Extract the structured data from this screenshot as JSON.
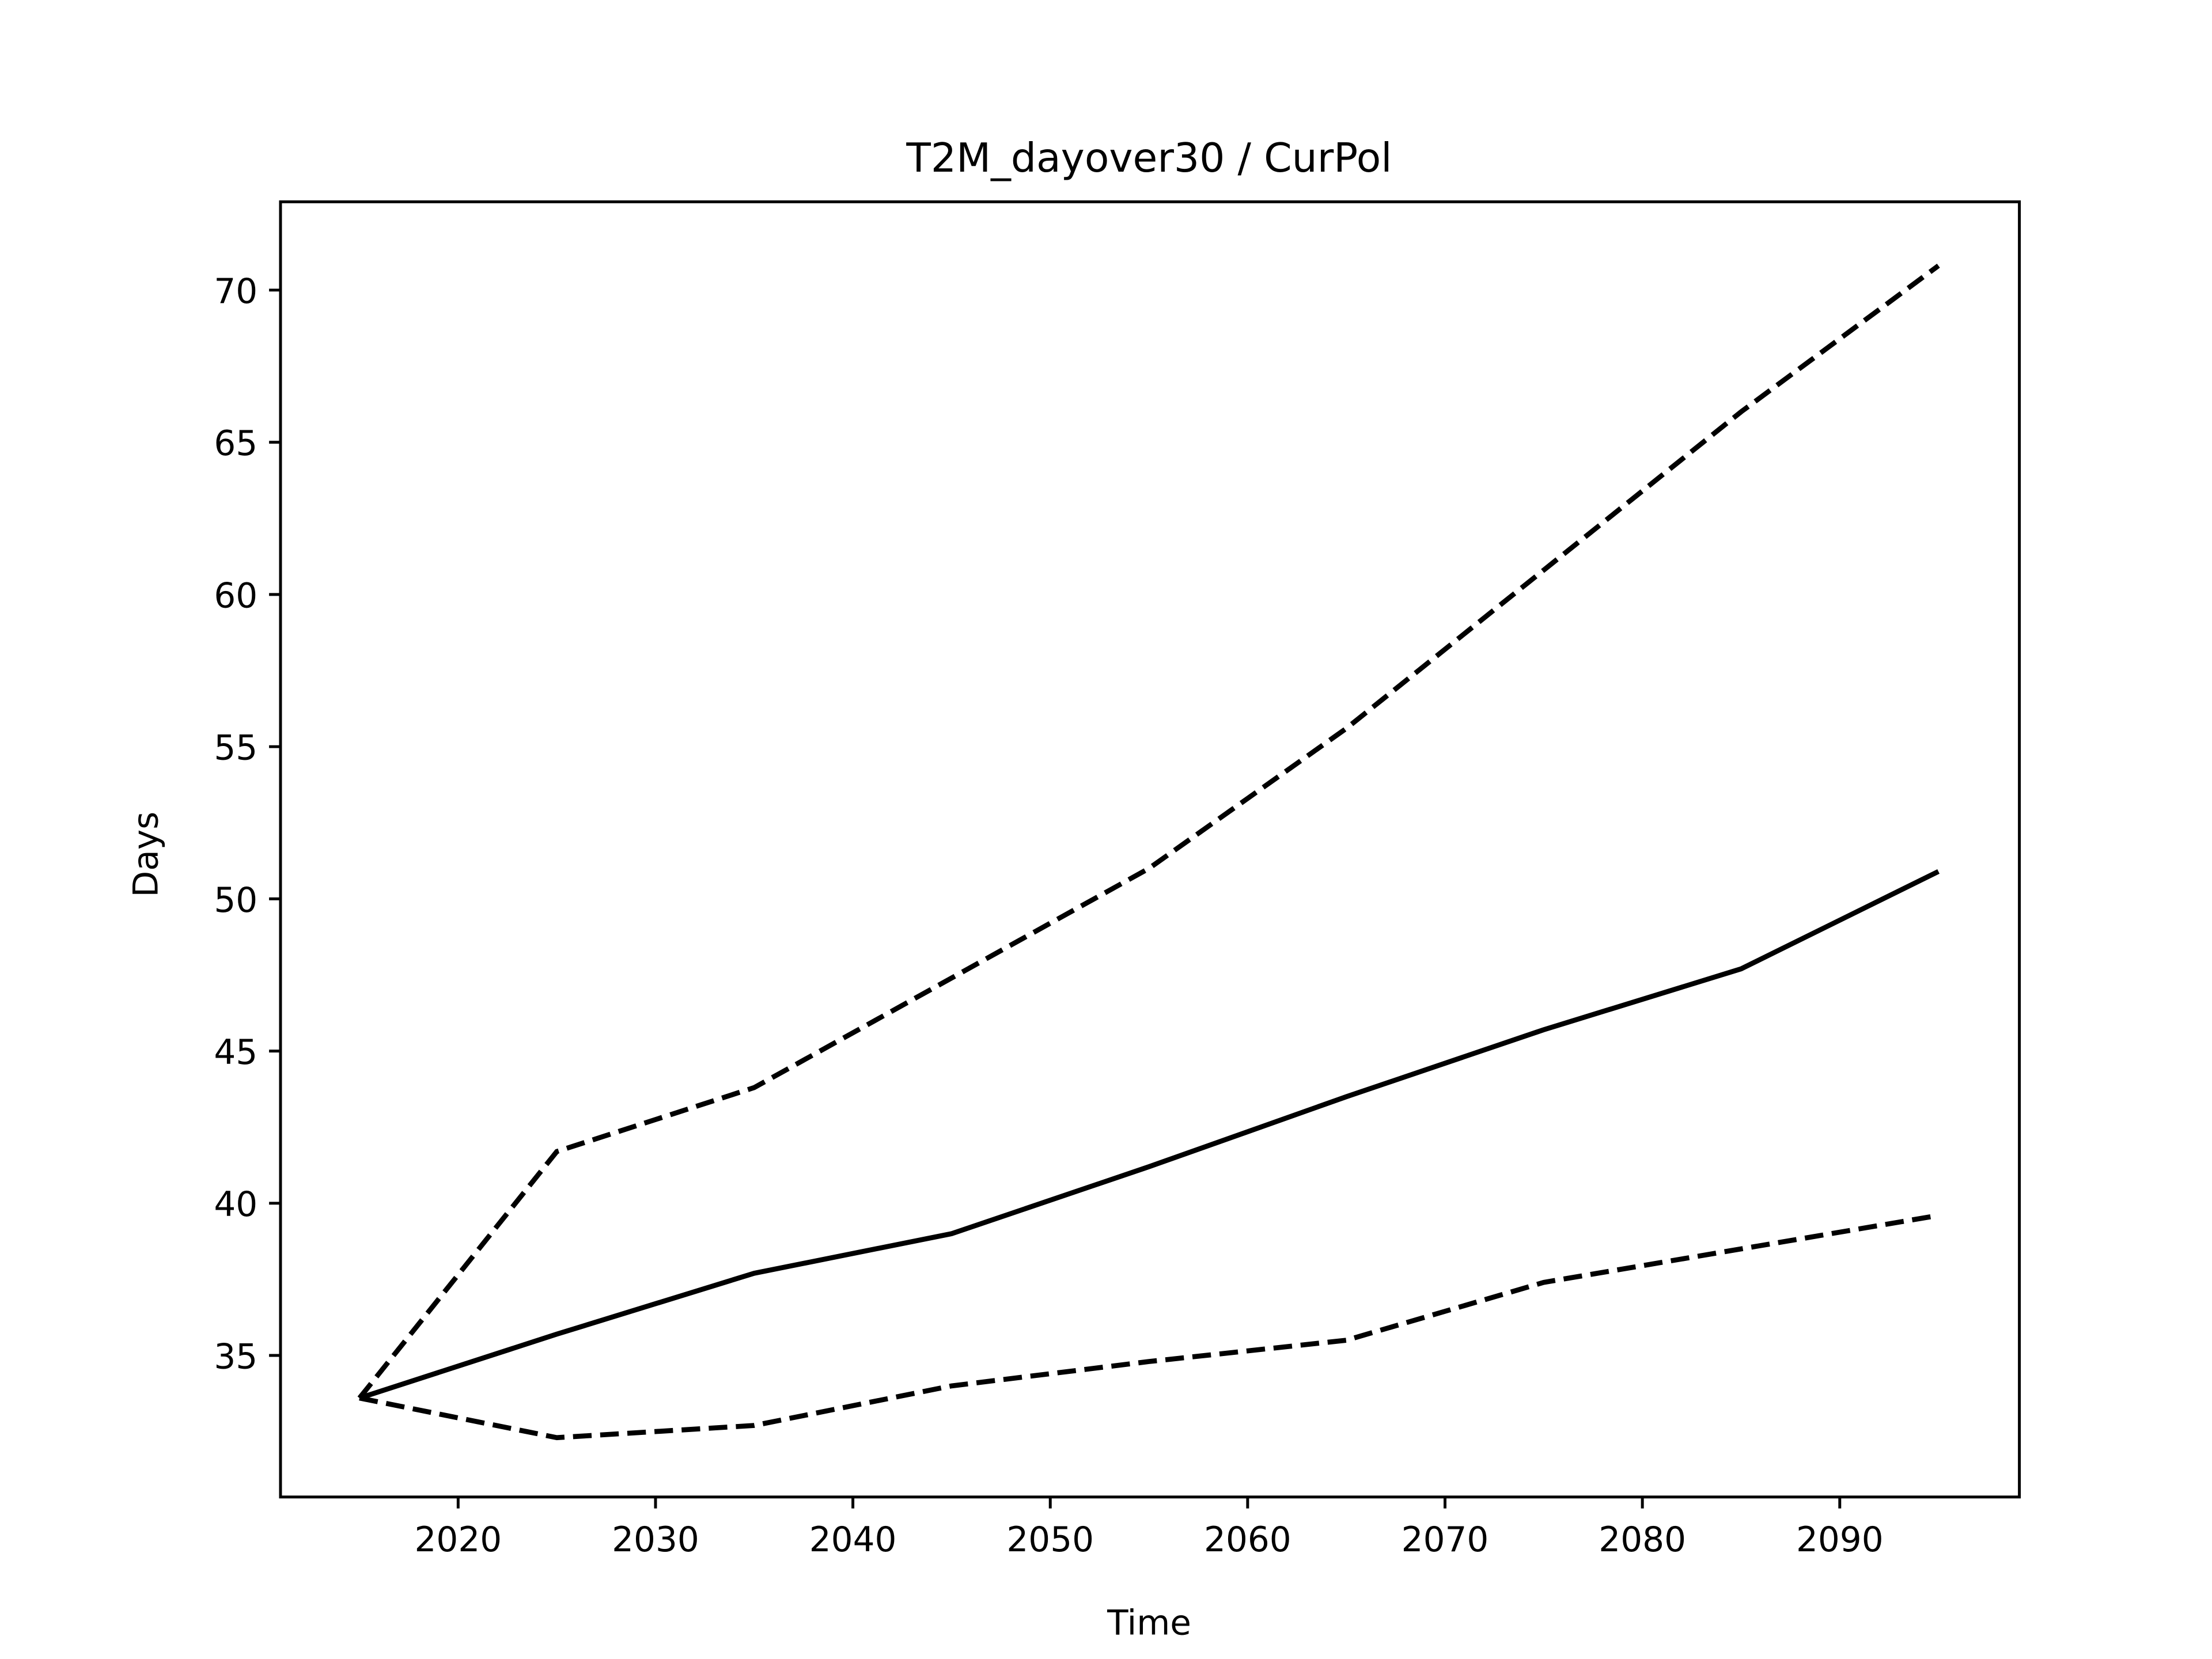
{
  "chart_data": {
    "type": "line",
    "title": "T2M_dayover30 / CurPol",
    "xlabel": "Time",
    "ylabel": "Days",
    "xlim": [
      2011.0,
      2099.1
    ],
    "ylim": [
      30.35,
      72.9
    ],
    "xticks": [
      2020,
      2030,
      2040,
      2050,
      2060,
      2070,
      2080,
      2090
    ],
    "yticks": [
      35,
      40,
      45,
      50,
      55,
      60,
      65,
      70
    ],
    "grid": false,
    "legend": "none",
    "x": [
      2015,
      2025,
      2035,
      2045,
      2055,
      2065,
      2075,
      2085,
      2095
    ],
    "series": [
      {
        "style": "solid",
        "color": "#000000",
        "values": [
          33.6,
          35.7,
          37.7,
          39.0,
          41.2,
          43.5,
          45.7,
          47.7,
          50.9
        ]
      },
      {
        "style": "dashed",
        "color": "#000000",
        "values": [
          33.6,
          41.7,
          43.8,
          47.4,
          51.0,
          55.6,
          60.8,
          66.0,
          70.8
        ]
      },
      {
        "style": "dashed",
        "color": "#000000",
        "values": [
          33.6,
          32.3,
          32.7,
          34.0,
          34.8,
          35.5,
          37.4,
          38.5,
          39.6
        ]
      }
    ]
  }
}
